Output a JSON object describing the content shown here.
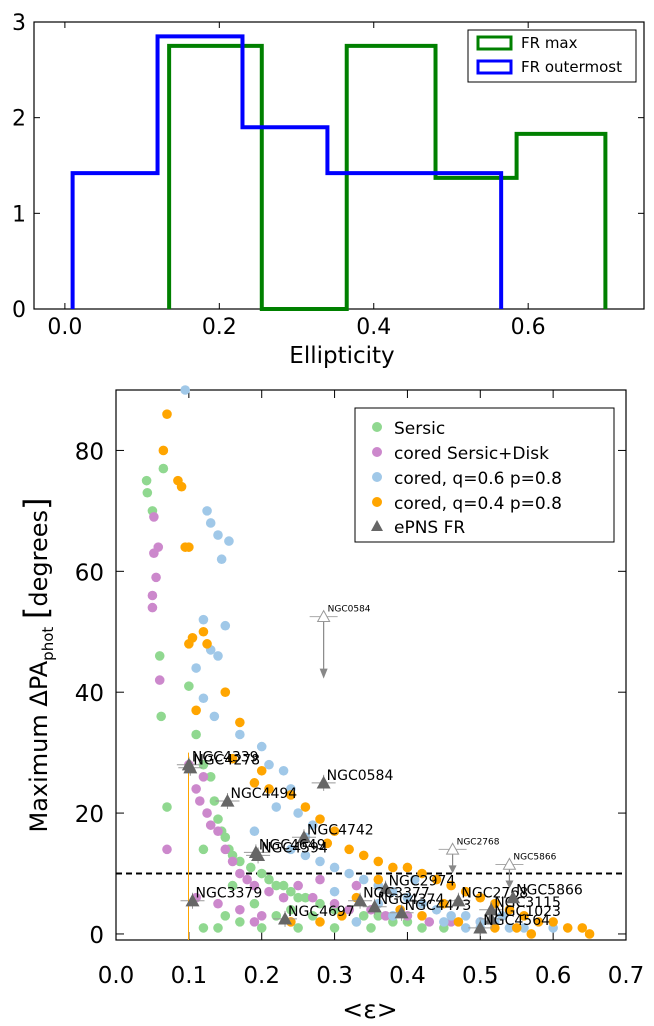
{
  "chart_data": [
    {
      "type": "histogram",
      "xlabel": "Ellipticity",
      "ylabel": "",
      "xlim": [
        -0.04,
        0.75
      ],
      "ylim": [
        0,
        3
      ],
      "x_ticks": [
        "0.0",
        "0.2",
        "0.4",
        "0.6"
      ],
      "y_ticks": [
        "0",
        "1",
        "2",
        "3"
      ],
      "legend_position": "top-right",
      "series": [
        {
          "name": "FR max",
          "color": "#008000",
          "bin_edges": [
            0.135,
            0.255,
            0.365,
            0.48,
            0.585,
            0.7
          ],
          "values": [
            2.75,
            0,
            2.75,
            1.37,
            1.83
          ]
        },
        {
          "name": "FR outermost",
          "color": "#0000ff",
          "bin_edges": [
            0.01,
            0.12,
            0.23,
            0.34,
            0.45,
            0.565
          ],
          "values": [
            1.42,
            2.85,
            1.9,
            1.42,
            1.42
          ]
        }
      ]
    },
    {
      "type": "scatter",
      "xlabel": "<ε>",
      "ylabel": "Maximum ΔPA_phot [degrees]",
      "ylabel_main": "Maximum  ΔPA",
      "ylabel_sub": "phot",
      "ylabel_bracket_open": "[",
      "ylabel_unit": "degrees",
      "ylabel_bracket_close": "]",
      "xlabel_left": "<",
      "xlabel_symbol": "ε",
      "xlabel_right": ">",
      "xlim": [
        0.0,
        0.7
      ],
      "ylim": [
        -1,
        90
      ],
      "x_ticks": [
        "0.0",
        "0.1",
        "0.2",
        "0.3",
        "0.4",
        "0.5",
        "0.6",
        "0.7"
      ],
      "y_ticks": [
        "0",
        "20",
        "40",
        "60",
        "80"
      ],
      "threshold_line": 10,
      "legend_position": "top-right",
      "series": [
        {
          "name": "Sersic",
          "color": "#90d890",
          "points": [
            [
              0.042,
              75
            ],
            [
              0.043,
              73
            ],
            [
              0.05,
              70
            ],
            [
              0.065,
              77
            ],
            [
              0.06,
              46
            ],
            [
              0.062,
              36
            ],
            [
              0.07,
              21
            ],
            [
              0.1,
              41
            ],
            [
              0.11,
              33
            ],
            [
              0.12,
              28
            ],
            [
              0.13,
              26
            ],
            [
              0.135,
              22
            ],
            [
              0.14,
              19
            ],
            [
              0.145,
              17
            ],
            [
              0.15,
              16
            ],
            [
              0.155,
              14
            ],
            [
              0.16,
              13
            ],
            [
              0.17,
              12
            ],
            [
              0.185,
              11
            ],
            [
              0.2,
              10
            ],
            [
              0.21,
              9
            ],
            [
              0.22,
              8
            ],
            [
              0.23,
              8
            ],
            [
              0.24,
              7
            ],
            [
              0.25,
              6
            ],
            [
              0.26,
              6
            ],
            [
              0.28,
              5
            ],
            [
              0.3,
              4
            ],
            [
              0.32,
              4
            ],
            [
              0.34,
              3
            ],
            [
              0.36,
              3
            ],
            [
              0.38,
              2
            ],
            [
              0.4,
              2
            ],
            [
              0.42,
              1
            ],
            [
              0.45,
              1
            ],
            [
              0.12,
              1
            ],
            [
              0.14,
              1
            ],
            [
              0.17,
              2
            ],
            [
              0.2,
              1
            ],
            [
              0.25,
              1
            ],
            [
              0.3,
              1
            ],
            [
              0.35,
              1
            ],
            [
              0.12,
              14
            ],
            [
              0.16,
              8
            ],
            [
              0.19,
              5
            ],
            [
              0.22,
              3
            ],
            [
              0.27,
              3
            ],
            [
              0.33,
              2
            ],
            [
              0.15,
              3
            ],
            [
              0.24,
              4
            ]
          ]
        },
        {
          "name": "cored Sersic+Disk",
          "color": "#cc88cc",
          "points": [
            [
              0.05,
              56
            ],
            [
              0.05,
              54
            ],
            [
              0.052,
              63
            ],
            [
              0.058,
              64
            ],
            [
              0.055,
              59
            ],
            [
              0.052,
              69
            ],
            [
              0.06,
              42
            ],
            [
              0.07,
              14
            ],
            [
              0.1,
              28
            ],
            [
              0.11,
              24
            ],
            [
              0.115,
              22
            ],
            [
              0.12,
              26
            ],
            [
              0.125,
              20
            ],
            [
              0.13,
              18
            ],
            [
              0.14,
              17
            ],
            [
              0.15,
              14
            ],
            [
              0.16,
              12
            ],
            [
              0.17,
              10
            ],
            [
              0.18,
              9
            ],
            [
              0.19,
              8
            ],
            [
              0.21,
              7
            ],
            [
              0.23,
              6
            ],
            [
              0.25,
              8
            ],
            [
              0.27,
              6
            ],
            [
              0.3,
              5
            ],
            [
              0.32,
              4
            ],
            [
              0.35,
              4
            ],
            [
              0.37,
              3
            ],
            [
              0.4,
              3
            ],
            [
              0.43,
              2
            ],
            [
              0.46,
              2
            ],
            [
              0.5,
              2
            ],
            [
              0.11,
              6
            ],
            [
              0.14,
              5
            ],
            [
              0.17,
              4
            ],
            [
              0.2,
              3
            ],
            [
              0.24,
              2
            ],
            [
              0.19,
              2
            ],
            [
              0.28,
              9
            ],
            [
              0.33,
              8
            ]
          ]
        },
        {
          "name": "cored, q=0.6 p=0.8",
          "color": "#a0c8e8",
          "points": [
            [
              0.095,
              90
            ],
            [
              0.125,
              70
            ],
            [
              0.13,
              68
            ],
            [
              0.14,
              66
            ],
            [
              0.155,
              65
            ],
            [
              0.145,
              62
            ],
            [
              0.15,
              51
            ],
            [
              0.12,
              52
            ],
            [
              0.13,
              47
            ],
            [
              0.14,
              46
            ],
            [
              0.11,
              44
            ],
            [
              0.12,
              39
            ],
            [
              0.135,
              36
            ],
            [
              0.17,
              33
            ],
            [
              0.2,
              31
            ],
            [
              0.21,
              28
            ],
            [
              0.23,
              27
            ],
            [
              0.24,
              24
            ],
            [
              0.22,
              21
            ],
            [
              0.25,
              20
            ],
            [
              0.27,
              18
            ],
            [
              0.19,
              17
            ],
            [
              0.24,
              14
            ],
            [
              0.26,
              13
            ],
            [
              0.28,
              12
            ],
            [
              0.3,
              11
            ],
            [
              0.32,
              10
            ],
            [
              0.34,
              9
            ],
            [
              0.36,
              8
            ],
            [
              0.38,
              7
            ],
            [
              0.4,
              6
            ],
            [
              0.42,
              5
            ],
            [
              0.44,
              4
            ],
            [
              0.46,
              3
            ],
            [
              0.48,
              3
            ],
            [
              0.5,
              2
            ],
            [
              0.52,
              2
            ],
            [
              0.54,
              1
            ],
            [
              0.56,
              1
            ],
            [
              0.6,
              1
            ],
            [
              0.33,
              2
            ],
            [
              0.38,
              3
            ],
            [
              0.45,
              2
            ],
            [
              0.5,
              1
            ],
            [
              0.53,
              3
            ],
            [
              0.48,
              1
            ],
            [
              0.36,
              5
            ],
            [
              0.41,
              9
            ],
            [
              0.3,
              7
            ],
            [
              0.26,
              16
            ]
          ]
        },
        {
          "name": "cored, q=0.4 p=0.8",
          "color": "#ffa500",
          "points": [
            [
              0.07,
              86
            ],
            [
              0.065,
              80
            ],
            [
              0.085,
              75
            ],
            [
              0.09,
              74
            ],
            [
              0.095,
              64
            ],
            [
              0.1,
              64
            ],
            [
              0.105,
              49
            ],
            [
              0.12,
              50
            ],
            [
              0.125,
              48
            ],
            [
              0.1,
              48
            ],
            [
              0.11,
              37
            ],
            [
              0.15,
              40
            ],
            [
              0.17,
              35
            ],
            [
              0.16,
              29
            ],
            [
              0.2,
              27
            ],
            [
              0.19,
              25
            ],
            [
              0.21,
              24
            ],
            [
              0.24,
              23
            ],
            [
              0.26,
              21
            ],
            [
              0.28,
              19
            ],
            [
              0.3,
              17
            ],
            [
              0.29,
              15
            ],
            [
              0.32,
              14
            ],
            [
              0.34,
              13
            ],
            [
              0.36,
              12
            ],
            [
              0.38,
              11
            ],
            [
              0.4,
              11
            ],
            [
              0.42,
              10
            ],
            [
              0.44,
              9
            ],
            [
              0.46,
              8
            ],
            [
              0.48,
              7
            ],
            [
              0.5,
              6
            ],
            [
              0.52,
              5
            ],
            [
              0.54,
              4
            ],
            [
              0.56,
              3
            ],
            [
              0.58,
              2
            ],
            [
              0.6,
              2
            ],
            [
              0.62,
              1
            ],
            [
              0.64,
              1
            ],
            [
              0.65,
              0
            ],
            [
              0.42,
              3
            ],
            [
              0.45,
              5
            ],
            [
              0.47,
              2
            ],
            [
              0.52,
              1
            ],
            [
              0.55,
              1
            ],
            [
              0.57,
              0
            ],
            [
              0.33,
              6
            ],
            [
              0.36,
              9
            ],
            [
              0.39,
              4
            ],
            [
              0.28,
              2
            ],
            [
              0.24,
              2
            ],
            [
              0.31,
              3
            ]
          ]
        },
        {
          "name": "ePNS FR",
          "color": "#666666",
          "points": [
            {
              "label": "NGC4339",
              "x": 0.1,
              "y": 28
            },
            {
              "label": "NGC4278",
              "x": 0.102,
              "y": 27.5
            },
            {
              "label": "NGC4494",
              "x": 0.153,
              "y": 22
            },
            {
              "label": "NGC0584",
              "x": 0.285,
              "y": 25
            },
            {
              "label": "NGC4742",
              "x": 0.258,
              "y": 16
            },
            {
              "label": "NGC4649",
              "x": 0.192,
              "y": 13.5
            },
            {
              "label": "NGC4594",
              "x": 0.195,
              "y": 13
            },
            {
              "label": "NGC3379",
              "x": 0.105,
              "y": 5.5
            },
            {
              "label": "NGC4697",
              "x": 0.232,
              "y": 2.5
            },
            {
              "label": "NGC2974",
              "x": 0.37,
              "y": 7.5
            },
            {
              "label": "NGC3377",
              "x": 0.335,
              "y": 5.5
            },
            {
              "label": "NGC4374",
              "x": 0.355,
              "y": 4.5
            },
            {
              "label": "NGC4473",
              "x": 0.392,
              "y": 3.5
            },
            {
              "label": "NGC2768",
              "x": 0.47,
              "y": 5.5
            },
            {
              "label": "NGC3115",
              "x": 0.515,
              "y": 4
            },
            {
              "label": "NGC5866",
              "x": 0.545,
              "y": 6
            },
            {
              "label": "NGC1023",
              "x": 0.515,
              "y": 2.5
            },
            {
              "label": "NGC4564",
              "x": 0.5,
              "y": 1
            }
          ]
        }
      ],
      "open_markers": [
        {
          "label": "NGC0584",
          "x": 0.285,
          "y": 52.5
        },
        {
          "label": "NGC2768",
          "x": 0.462,
          "y": 14
        },
        {
          "label": "NGC5866",
          "x": 0.54,
          "y": 11.5
        }
      ]
    }
  ]
}
